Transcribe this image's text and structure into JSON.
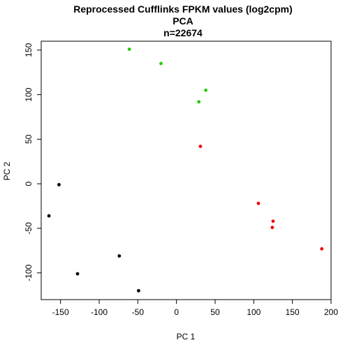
{
  "chart_data": {
    "type": "scatter",
    "title_lines": [
      "Reprocessed Cufflinks FPKM values (log2cpm)",
      "PCA",
      "n=22674"
    ],
    "xlabel": "PC 1",
    "ylabel": "PC 2",
    "xlim": [
      -175,
      200
    ],
    "ylim": [
      -130,
      160
    ],
    "x_ticks": [
      -150,
      -100,
      -50,
      0,
      50,
      100,
      150,
      200
    ],
    "y_ticks": [
      -100,
      -50,
      0,
      50,
      100,
      150
    ],
    "x_tick_labels": [
      "-150",
      "-100",
      "-50",
      "0",
      "50",
      "100",
      "150",
      "200"
    ],
    "y_tick_labels": [
      "-100",
      "-50",
      "0",
      "50",
      "100",
      "150"
    ],
    "grid": false,
    "series": [
      {
        "color": "#000000",
        "points": [
          [
            -152,
            -1
          ],
          [
            -165,
            -36
          ],
          [
            -128,
            -101
          ],
          [
            -74,
            -81
          ],
          [
            -49,
            -120
          ]
        ]
      },
      {
        "color": "#22cc00",
        "points": [
          [
            -61,
            151
          ],
          [
            -20,
            135
          ],
          [
            38,
            105
          ],
          [
            29,
            92
          ]
        ]
      },
      {
        "color": "#ee0000",
        "points": [
          [
            31,
            42
          ],
          [
            106,
            -22
          ],
          [
            125,
            -42
          ],
          [
            124,
            -49
          ],
          [
            188,
            -73
          ]
        ]
      }
    ]
  }
}
